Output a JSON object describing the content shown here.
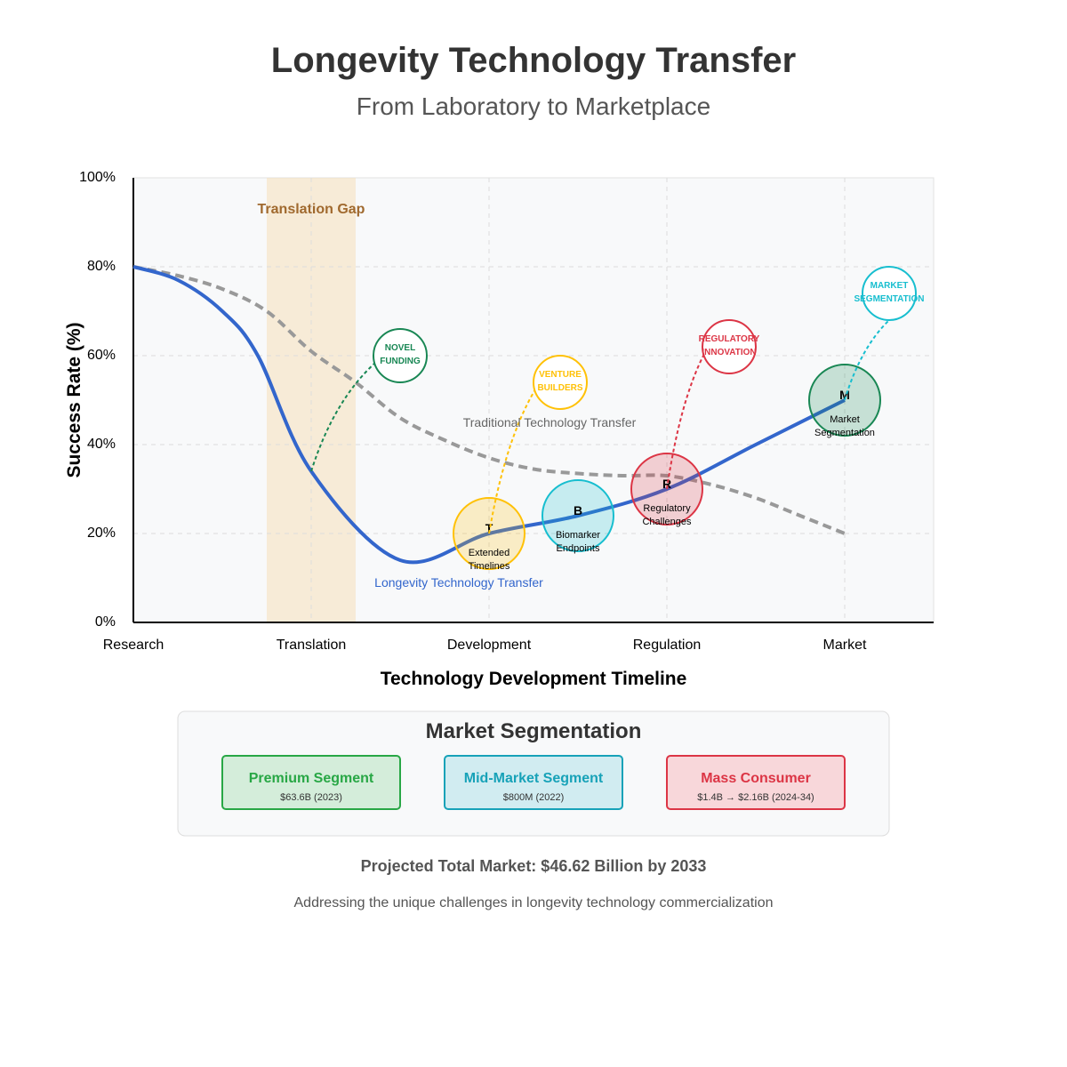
{
  "header": {
    "title": "Longevity Technology Transfer",
    "subtitle": "From Laboratory to Marketplace"
  },
  "chart_data": {
    "type": "line",
    "title": "Longevity Technology Transfer",
    "subtitle": "From Laboratory to Marketplace",
    "xlabel": "Technology Development Timeline",
    "ylabel": "Success Rate (%)",
    "categories": [
      "Research",
      "Translation",
      "Development",
      "Regulation",
      "Market"
    ],
    "ylim": [
      0,
      100
    ],
    "y_ticks": [
      "0%",
      "20%",
      "40%",
      "60%",
      "80%",
      "100%"
    ],
    "grid": true,
    "series": [
      {
        "name": "Longevity Technology Transfer",
        "color": "#3366cc",
        "x": [
          0,
          0.25,
          0.5,
          0.7,
          1.0,
          1.5,
          2.0,
          2.5,
          3.0,
          3.5,
          4.0
        ],
        "values": [
          80,
          77,
          70,
          60,
          34,
          14,
          20,
          24,
          30,
          40,
          50
        ]
      },
      {
        "name": "Traditional Technology Transfer",
        "color": "#999999",
        "x": [
          0,
          0.25,
          0.5,
          0.75,
          1.0,
          1.25,
          1.5,
          1.75,
          2.0,
          2.25,
          2.5,
          2.75,
          3.0,
          3.25,
          3.5,
          3.75,
          4.0
        ],
        "values": [
          80,
          78,
          75,
          70,
          61,
          54,
          46,
          41,
          37,
          34.5,
          33.5,
          33,
          33,
          31,
          28,
          24,
          20
        ]
      }
    ],
    "highlight_band": {
      "label": "Translation Gap",
      "from": 0.75,
      "to": 1.25,
      "color": "#f5deb3"
    },
    "challenges": [
      {
        "letter": "T",
        "label": "Extended Timelines",
        "line1": "Extended",
        "line2": "Timelines",
        "x": 2.0,
        "y": 20,
        "color": "#ffc107"
      },
      {
        "letter": "B",
        "label": "Biomarker Endpoints",
        "line1": "Biomarker",
        "line2": "Endpoints",
        "x": 2.5,
        "y": 24,
        "color": "#17becf"
      },
      {
        "letter": "R",
        "label": "Regulatory Challenges",
        "line1": "Regulatory",
        "line2": "Challenges",
        "x": 3.0,
        "y": 30,
        "color": "#dc3545"
      },
      {
        "letter": "M",
        "label": "Market Segmentation",
        "line1": "Market",
        "line2": "Segmentation",
        "x": 4.0,
        "y": 50,
        "color": "#198754"
      }
    ],
    "solutions": [
      {
        "line1": "NOVEL",
        "line2": "FUNDING",
        "x": 1.5,
        "y": 60,
        "from_x": 1.0,
        "from_y": 34,
        "color": "#198754"
      },
      {
        "line1": "VENTURE",
        "line2": "BUILDERS",
        "x": 2.4,
        "y": 54,
        "from_x": 2.0,
        "from_y": 20,
        "color": "#ffc107"
      },
      {
        "line1": "REGULATORY",
        "line2": "INNOVATION",
        "x": 3.35,
        "y": 62,
        "from_x": 3.0,
        "from_y": 30,
        "color": "#dc3545"
      },
      {
        "line1": "MARKET",
        "line2": "SEGMENTATION",
        "x": 4.25,
        "y": 74,
        "from_x": 4.0,
        "from_y": 50,
        "color": "#17becf"
      }
    ]
  },
  "segmentation": {
    "title": "Market Segmentation",
    "segments": [
      {
        "name": "Premium Segment",
        "value": "$63.6B (2023)",
        "color": "#28a745",
        "bg": "#d4edda"
      },
      {
        "name": "Mid-Market Segment",
        "value": "$800M (2022)",
        "color": "#17a2b8",
        "bg": "#d1ecf1"
      },
      {
        "name": "Mass Consumer",
        "value": "$1.4B → $2.16B (2024-34)",
        "color": "#dc3545",
        "bg": "#f8d7da"
      }
    ]
  },
  "footer": {
    "projection": "Projected Total Market: $46.62 Billion by 2033",
    "tagline": "Addressing the unique challenges in longevity technology commercialization"
  }
}
